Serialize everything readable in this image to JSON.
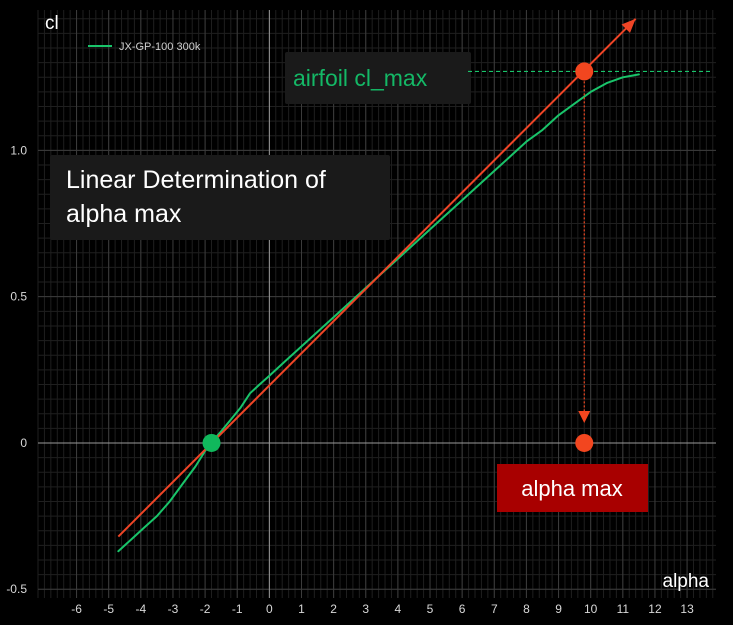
{
  "colors": {
    "background": "#000000",
    "panel": "#1a1a1a",
    "grid_major": "#3c3c3c",
    "grid_minor": "#1f1f1f",
    "zero_axis": "#9a9a9a",
    "polar": "#19c46a",
    "linear": "#ef4526",
    "marker_red": "#f2461f",
    "marker_green": "#10b85c",
    "cl_max_text": "#14b866",
    "alpha_max_box": "#a80000",
    "alpha_max_text": "#ffffff"
  },
  "chart_data": {
    "type": "line",
    "xlabel": "alpha",
    "ylabel": "cl",
    "xlim": [
      -7.2,
      13.9
    ],
    "ylim": [
      -0.53,
      1.48
    ],
    "x_ticks": [
      "-6",
      "-5",
      "-4",
      "-3",
      "-2",
      "-1",
      "0",
      "1",
      "2",
      "3",
      "4",
      "5",
      "6",
      "7",
      "8",
      "9",
      "10",
      "11",
      "12",
      "13"
    ],
    "y_ticks": [
      "-0.5",
      "0",
      "0.5",
      "1.0"
    ],
    "grid": true,
    "legend": {
      "placement": "top-left",
      "entries": [
        "JX-GP-100 300k"
      ]
    },
    "series": [
      {
        "name": "JX-GP-100 300k",
        "x": [
          -4.7,
          -4.3,
          -3.9,
          -3.5,
          -3.1,
          -2.7,
          -2.3,
          -1.9,
          -1.5,
          -1.2,
          -0.9,
          -0.6,
          -0.3,
          0,
          0.5,
          1,
          2,
          3,
          4,
          5,
          6,
          7,
          7.5,
          8,
          8.5,
          9,
          9.5,
          10,
          10.5,
          11,
          11.5
        ],
        "y": [
          -0.37,
          -0.33,
          -0.29,
          -0.25,
          -0.2,
          -0.14,
          -0.08,
          -0.01,
          0.04,
          0.08,
          0.12,
          0.17,
          0.2,
          0.23,
          0.28,
          0.33,
          0.43,
          0.53,
          0.63,
          0.73,
          0.83,
          0.93,
          0.98,
          1.03,
          1.07,
          1.12,
          1.16,
          1.2,
          1.23,
          1.25,
          1.26
        ]
      }
    ],
    "linear_fit": {
      "x": [
        -4.7,
        11.4
      ],
      "y": [
        -0.32,
        1.45
      ]
    },
    "zero_lift_point": {
      "x": -1.8,
      "y": 0
    },
    "cl_max_point": {
      "x": 9.8,
      "y": 1.27
    },
    "alpha_max_point": {
      "x": 9.8,
      "y": 0
    },
    "cl_max_level": 1.27,
    "annotations": {
      "title": "Linear Determination of alpha max",
      "cl_max": "airfoil cl_max",
      "alpha_max": "alpha max"
    }
  }
}
